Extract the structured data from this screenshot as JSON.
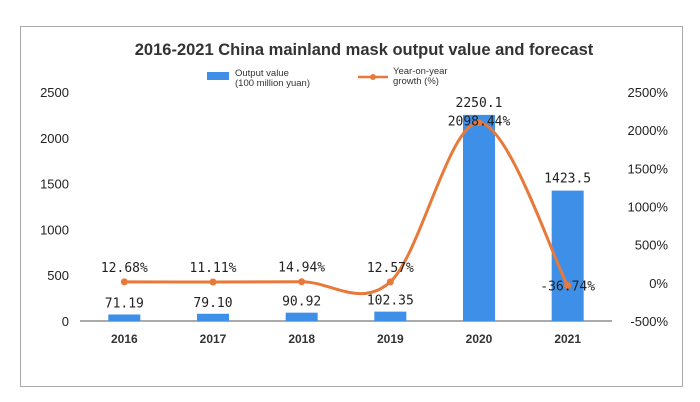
{
  "chart_data": {
    "type": "bar",
    "title": "2016-2021 China mainland mask output value and forecast",
    "categories": [
      "2016",
      "2017",
      "2018",
      "2019",
      "2020",
      "2021"
    ],
    "series": [
      {
        "name": "Output value\n(100 million yuan)",
        "type": "bar",
        "axis": "left",
        "color": "#3d8fe8",
        "values": [
          71.19,
          79.1,
          90.92,
          102.35,
          2250.1,
          1423.5
        ],
        "labels": [
          "71.19",
          "79.10",
          "90.92",
          "102.35",
          "2250.1",
          "1423.5"
        ]
      },
      {
        "name": "Year-on-year\ngrowth (%)",
        "type": "line",
        "smooth": true,
        "axis": "right",
        "color": "#e8793a",
        "values": [
          12.68,
          11.11,
          14.94,
          12.57,
          2098.44,
          -36.74
        ],
        "labels": [
          "12.68%",
          "11.11%",
          "14.94%",
          "12.57%",
          "2098.44%",
          "-36.74%"
        ]
      }
    ],
    "y_left": {
      "min": 0,
      "max": 2500,
      "ticks": [
        0,
        500,
        1000,
        1500,
        2000,
        2500
      ],
      "tick_labels": [
        "0",
        "500",
        "1000",
        "1500",
        "2000",
        "2500"
      ]
    },
    "y_right": {
      "min": -500,
      "max": 2500,
      "ticks": [
        -500,
        0,
        500,
        1000,
        1500,
        2000,
        2500
      ],
      "tick_labels": [
        "-500%",
        "0%",
        "500%",
        "1000%",
        "1500%",
        "2000%",
        "2500%"
      ]
    },
    "grid": false,
    "legend_position": "top-center"
  }
}
